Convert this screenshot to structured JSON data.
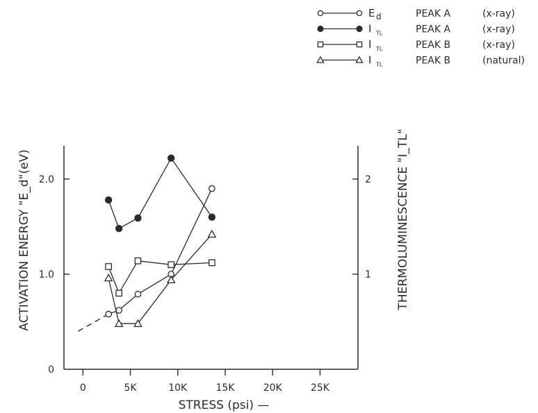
{
  "chart_data": {
    "type": "line",
    "xlabel": "STRESS (psi) —",
    "ylabel_left": "ACTIVATION ENERGY \"E_d\"(eV)",
    "ylabel_right": "THERMOLUMINESCENCE \"I_TL\"",
    "x_ticks": [
      {
        "value": 0,
        "label": "0"
      },
      {
        "value": 5000,
        "label": "5K"
      },
      {
        "value": 10000,
        "label": "10K"
      },
      {
        "value": 15000,
        "label": "15K"
      },
      {
        "value": 20000,
        "label": "20K"
      },
      {
        "value": 25000,
        "label": "25K"
      }
    ],
    "y_left_ticks": [
      {
        "value": 0,
        "label": "0"
      },
      {
        "value": 1.0,
        "label": "1.0"
      },
      {
        "value": 2.0,
        "label": "2.0"
      }
    ],
    "y_right_ticks": [
      {
        "value": 1,
        "label": "1"
      },
      {
        "value": 2,
        "label": "2"
      }
    ],
    "xlim": [
      -2000,
      29000
    ],
    "ylim_left": [
      0,
      2.35
    ],
    "ylim_right": [
      0,
      2.35
    ],
    "grid": false,
    "legend_position": "top-right",
    "series": [
      {
        "symbol": "E",
        "subscript": "d",
        "peak": "PEAK A",
        "condition": "(x-ray)",
        "marker": "open-circle",
        "axis": "left",
        "x": [
          2700,
          3800,
          5800,
          9300,
          13600
        ],
        "y": [
          0.58,
          0.62,
          0.79,
          1.0,
          1.9
        ],
        "extrapolation": {
          "x": [
            -500,
            2700
          ],
          "y": [
            0.4,
            0.58
          ]
        }
      },
      {
        "symbol": "I",
        "subscript": "TL",
        "peak": "PEAK A",
        "condition": "(x-ray)",
        "marker": "filled-circle",
        "axis": "right",
        "x": [
          2700,
          3800,
          5800,
          9300,
          13600
        ],
        "y": [
          1.78,
          1.48,
          1.59,
          2.22,
          1.6
        ]
      },
      {
        "symbol": "I",
        "subscript": "TL",
        "peak": "PEAK B",
        "condition": "(x-ray)",
        "marker": "open-square",
        "axis": "right",
        "x": [
          2700,
          3800,
          5800,
          9300,
          13600
        ],
        "y": [
          1.08,
          0.8,
          1.14,
          1.1,
          1.12
        ]
      },
      {
        "symbol": "I",
        "subscript": "TL",
        "peak": "PEAK B",
        "condition": "(natural)",
        "marker": "open-triangle",
        "axis": "right",
        "x": [
          2700,
          3800,
          5800,
          9300,
          13600
        ],
        "y": [
          0.96,
          0.48,
          0.48,
          0.94,
          1.42
        ]
      }
    ]
  }
}
